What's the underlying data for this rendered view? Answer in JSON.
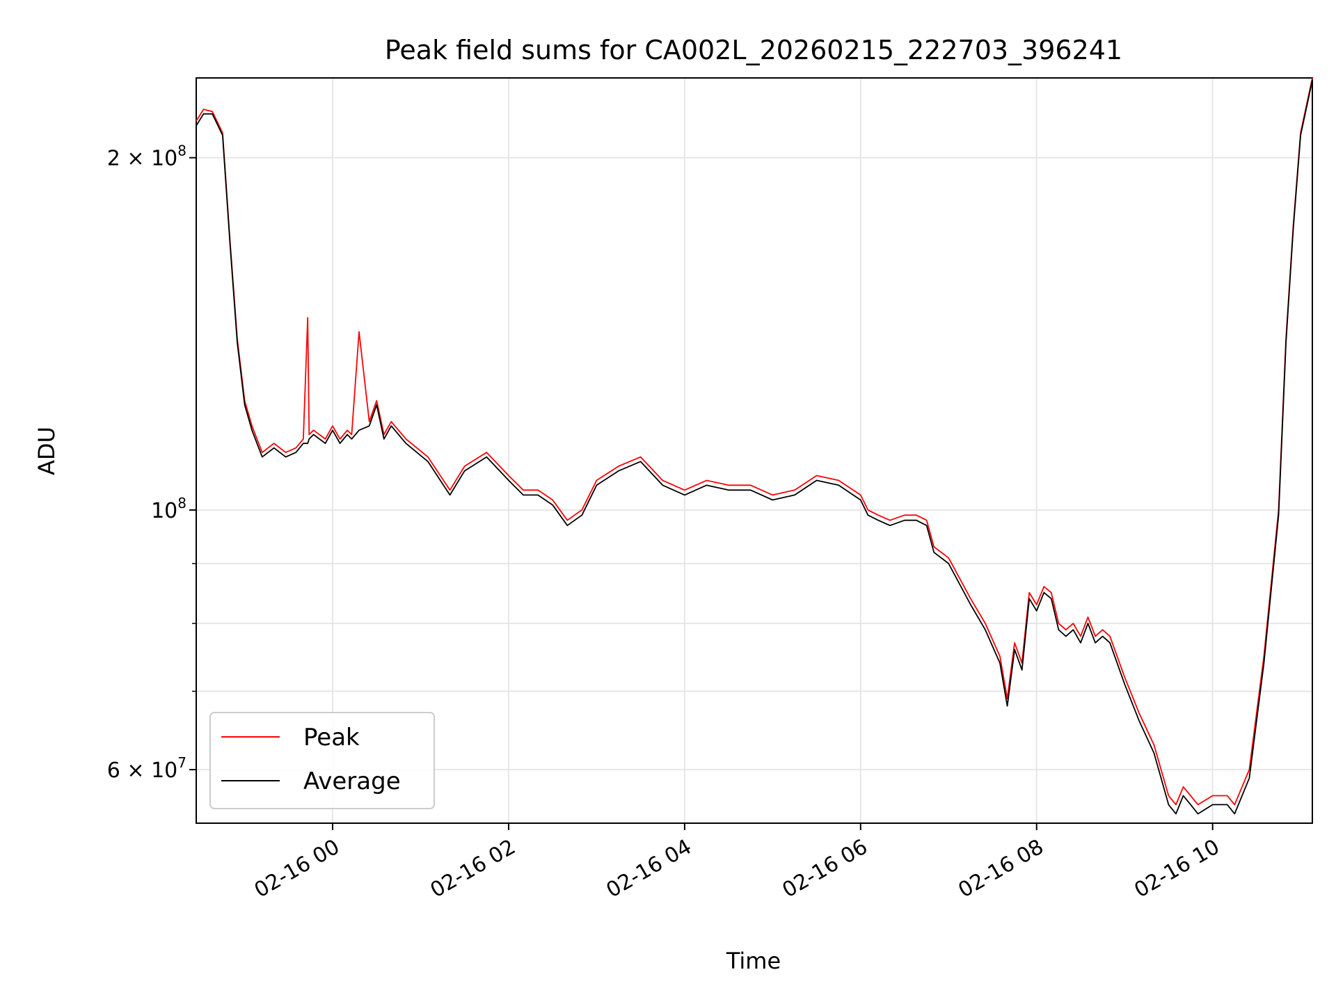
{
  "chart_data": {
    "type": "line",
    "title": "Peak field sums for CA002L_20260215_222703_396241",
    "xlabel": "Time",
    "ylabel": "ADU",
    "yscale": "log",
    "ylim": [
      54000000,
      234000000
    ],
    "xlim": [
      "2026-02-15 22:27",
      "2026-02-16 11:08"
    ],
    "grid": true,
    "legend_position": "lower-left",
    "x_ticks": [
      {
        "label": "02-16 00",
        "value": "2026-02-16 00:00"
      },
      {
        "label": "02-16 02",
        "value": "2026-02-16 02:00"
      },
      {
        "label": "02-16 04",
        "value": "2026-02-16 04:00"
      },
      {
        "label": "02-16 06",
        "value": "2026-02-16 06:00"
      },
      {
        "label": "02-16 08",
        "value": "2026-02-16 08:00"
      },
      {
        "label": "02-16 10",
        "value": "2026-02-16 10:00"
      }
    ],
    "y_ticks": [
      {
        "value": 200000000,
        "mantissa": "2 × 10",
        "exp": "8"
      },
      {
        "value": 100000000,
        "mantissa": "10",
        "exp": "8"
      },
      {
        "value": 60000000,
        "mantissa": "6 × 10",
        "exp": "7"
      }
    ],
    "y_minor_grid": [
      70000000,
      80000000,
      90000000
    ],
    "x": [
      "2026-02-15 22:27",
      "2026-02-15 22:32",
      "2026-02-15 22:38",
      "2026-02-15 22:45",
      "2026-02-15 22:50",
      "2026-02-15 22:55",
      "2026-02-15 23:00",
      "2026-02-15 23:05",
      "2026-02-15 23:12",
      "2026-02-15 23:20",
      "2026-02-15 23:28",
      "2026-02-15 23:35",
      "2026-02-15 23:40",
      "2026-02-15 23:43",
      "2026-02-15 23:44",
      "2026-02-15 23:47",
      "2026-02-15 23:55",
      "2026-02-16 00:00",
      "2026-02-16 00:05",
      "2026-02-16 00:10",
      "2026-02-16 00:13",
      "2026-02-16 00:18",
      "2026-02-16 00:25",
      "2026-02-16 00:30",
      "2026-02-16 00:35",
      "2026-02-16 00:40",
      "2026-02-16 00:50",
      "2026-02-16 01:05",
      "2026-02-16 01:20",
      "2026-02-16 01:30",
      "2026-02-16 01:45",
      "2026-02-16 02:00",
      "2026-02-16 02:10",
      "2026-02-16 02:20",
      "2026-02-16 02:30",
      "2026-02-16 02:40",
      "2026-02-16 02:50",
      "2026-02-16 03:00",
      "2026-02-16 03:15",
      "2026-02-16 03:30",
      "2026-02-16 03:45",
      "2026-02-16 04:00",
      "2026-02-16 04:15",
      "2026-02-16 04:30",
      "2026-02-16 04:45",
      "2026-02-16 05:00",
      "2026-02-16 05:15",
      "2026-02-16 05:30",
      "2026-02-16 05:45",
      "2026-02-16 06:00",
      "2026-02-16 06:05",
      "2026-02-16 06:12",
      "2026-02-16 06:20",
      "2026-02-16 06:30",
      "2026-02-16 06:38",
      "2026-02-16 06:45",
      "2026-02-16 06:50",
      "2026-02-16 07:00",
      "2026-02-16 07:15",
      "2026-02-16 07:25",
      "2026-02-16 07:35",
      "2026-02-16 07:40",
      "2026-02-16 07:45",
      "2026-02-16 07:50",
      "2026-02-16 07:55",
      "2026-02-16 08:00",
      "2026-02-16 08:05",
      "2026-02-16 08:10",
      "2026-02-16 08:15",
      "2026-02-16 08:20",
      "2026-02-16 08:25",
      "2026-02-16 08:30",
      "2026-02-16 08:35",
      "2026-02-16 08:40",
      "2026-02-16 08:45",
      "2026-02-16 08:50",
      "2026-02-16 09:00",
      "2026-02-16 09:10",
      "2026-02-16 09:20",
      "2026-02-16 09:30",
      "2026-02-16 09:35",
      "2026-02-16 09:40",
      "2026-02-16 09:45",
      "2026-02-16 09:50",
      "2026-02-16 10:00",
      "2026-02-16 10:10",
      "2026-02-16 10:15",
      "2026-02-16 10:25",
      "2026-02-16 10:35",
      "2026-02-16 10:45",
      "2026-02-16 10:50",
      "2026-02-16 10:55",
      "2026-02-16 11:00",
      "2026-02-16 11:08"
    ],
    "series": [
      {
        "name": "Peak",
        "color": "#ff0000",
        "values": [
          215000000,
          220000000,
          219000000,
          210000000,
          170000000,
          140000000,
          124000000,
          118000000,
          112000000,
          114000000,
          112000000,
          113000000,
          115000000,
          146000000,
          116000000,
          117000000,
          115000000,
          118000000,
          115000000,
          117000000,
          116000000,
          142000000,
          119000000,
          124000000,
          116000000,
          119000000,
          115000000,
          111000000,
          104000000,
          109000000,
          112000000,
          107000000,
          104000000,
          104000000,
          102000000,
          98000000,
          100000000,
          106000000,
          109000000,
          111000000,
          106000000,
          104000000,
          106000000,
          105000000,
          105000000,
          103000000,
          104000000,
          107000000,
          106000000,
          103000000,
          100000000,
          99000000,
          98000000,
          99000000,
          99000000,
          98000000,
          93000000,
          91000000,
          84000000,
          80000000,
          75000000,
          69000000,
          77000000,
          74000000,
          85000000,
          83000000,
          86000000,
          85000000,
          80000000,
          79000000,
          80000000,
          78000000,
          81000000,
          78000000,
          79000000,
          78000000,
          72000000,
          67000000,
          63000000,
          57000000,
          56000000,
          58000000,
          57000000,
          56000000,
          57000000,
          57000000,
          56000000,
          60000000,
          75000000,
          100000000,
          140000000,
          175000000,
          210000000,
          234000000
        ]
      },
      {
        "name": "Average",
        "color": "#000000",
        "values": [
          213000000,
          218000000,
          218000000,
          209000000,
          169000000,
          139000000,
          123000000,
          117000000,
          111000000,
          113000000,
          111000000,
          112000000,
          114000000,
          114000000,
          115000000,
          116000000,
          114000000,
          117000000,
          114000000,
          116000000,
          115000000,
          117000000,
          118000000,
          123000000,
          115000000,
          118000000,
          114000000,
          110000000,
          103000000,
          108000000,
          111000000,
          106000000,
          103000000,
          103000000,
          101000000,
          97000000,
          99000000,
          105000000,
          108000000,
          110000000,
          105000000,
          103000000,
          105000000,
          104000000,
          104000000,
          102000000,
          103000000,
          106000000,
          105000000,
          102000000,
          99000000,
          98000000,
          97000000,
          98000000,
          98000000,
          97000000,
          92000000,
          90000000,
          83000000,
          79000000,
          74000000,
          68000000,
          76000000,
          73000000,
          84000000,
          82000000,
          85000000,
          84000000,
          79000000,
          78000000,
          79000000,
          77000000,
          80000000,
          77000000,
          78000000,
          77000000,
          71000000,
          66000000,
          62000000,
          56000000,
          55000000,
          57000000,
          56000000,
          55000000,
          56000000,
          56000000,
          55000000,
          59000000,
          74000000,
          99000000,
          139000000,
          174000000,
          209000000,
          233000000
        ]
      }
    ]
  }
}
